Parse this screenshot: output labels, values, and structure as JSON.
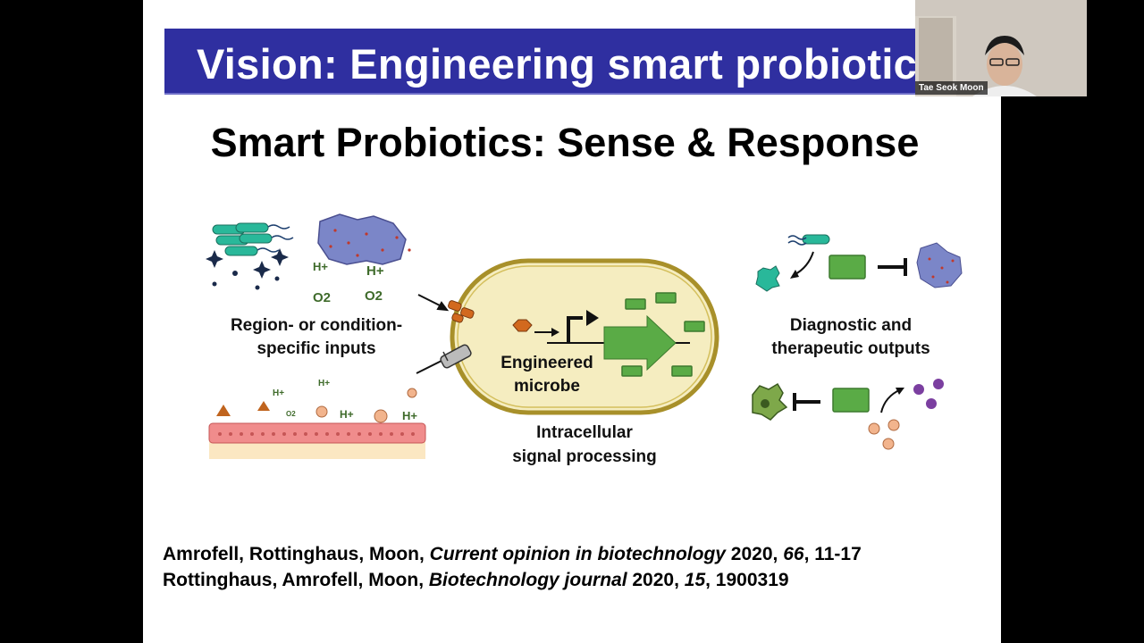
{
  "slide": {
    "banner_title": "Vision: Engineering smart probiotics",
    "subtitle": "Smart Probiotics: Sense & Response",
    "inputs_label_line1": "Region- or condition-",
    "inputs_label_line2": "specific inputs",
    "microbe_label_line1": "Engineered",
    "microbe_label_line2": "microbe",
    "processing_label_line1": "Intracellular",
    "processing_label_line2": "signal processing",
    "outputs_label_line1": "Diagnostic and",
    "outputs_label_line2": "therapeutic outputs",
    "chem_h_plus": "H+",
    "chem_o2": "O2",
    "references": [
      {
        "authors": "Amrofell, Rottinghaus, Moon, ",
        "journal": "Current opinion in biotechnology",
        "year": " 2020, ",
        "volume": "66",
        "pages": ", 11-17"
      },
      {
        "authors": "Rottinghaus, Amrofell, Moon, ",
        "journal": "Biotechnology journal",
        "year": " 2020, ",
        "volume": "15",
        "pages": ", 1900319"
      }
    ]
  },
  "video": {
    "participant_name": "Tae Seok Moon"
  },
  "colors": {
    "banner": "#2f2fa0",
    "cell_fill": "#f5edc0",
    "cell_border": "#a8902a",
    "green": "#5aab46",
    "teal": "#29b89a",
    "orange": "#d2691e"
  }
}
